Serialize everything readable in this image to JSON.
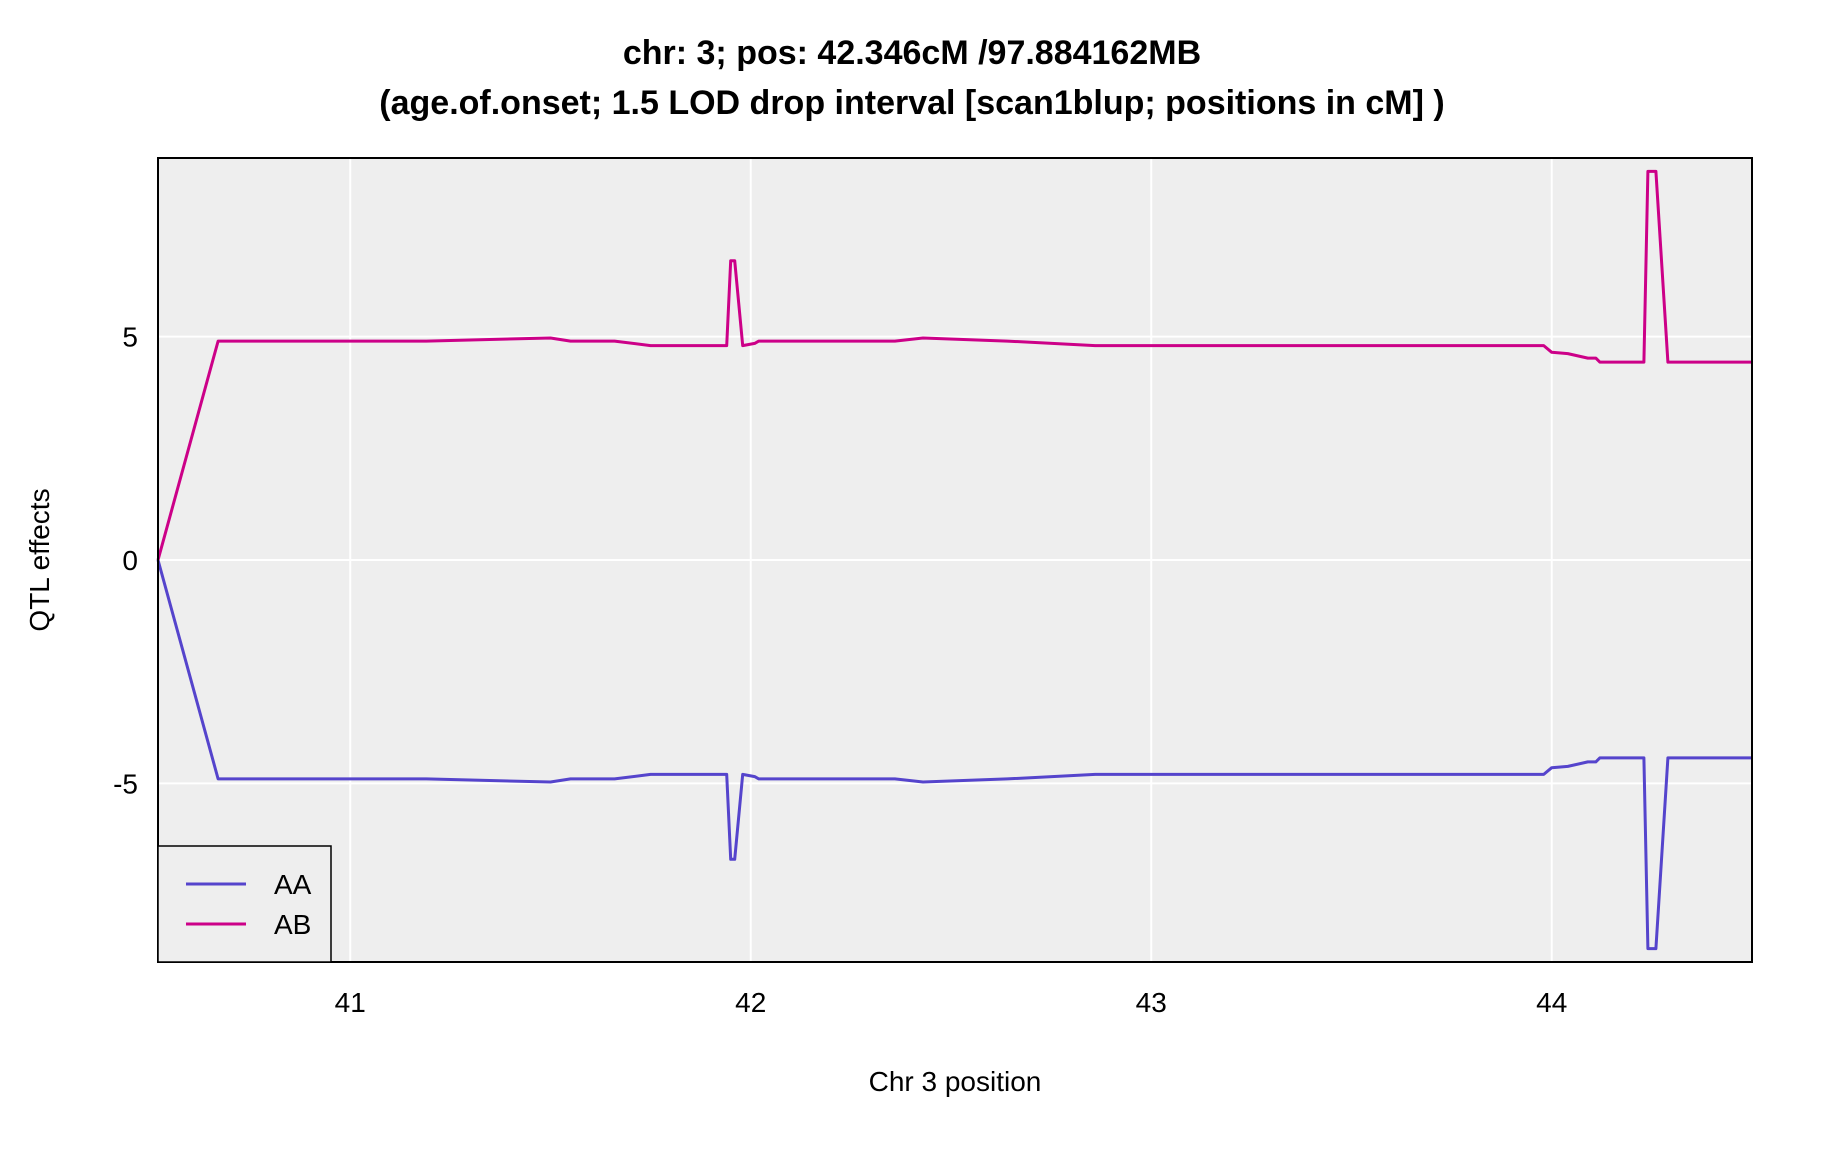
{
  "chart_data": {
    "type": "line",
    "title": "chr: 3; pos: 42.346cM /97.884162MB",
    "subtitle": "(age.of.onset; 1.5 LOD drop interval [scan1blup; positions in cM] )",
    "xlabel": "Chr 3 position",
    "ylabel": "QTL effects",
    "xlim": [
      40.52,
      44.5
    ],
    "ylim": [
      -9.0,
      9.0
    ],
    "x_ticks": [
      41,
      42,
      43,
      44
    ],
    "x_tick_labels": [
      "41",
      "42",
      "43",
      "44"
    ],
    "y_ticks": [
      -5,
      0,
      5
    ],
    "y_tick_labels": [
      "-5",
      "0",
      "5"
    ],
    "grid": true,
    "legend_position": "bottom-left",
    "x": [
      40.52,
      40.67,
      41.19,
      41.5,
      41.55,
      41.66,
      41.75,
      41.94,
      41.95,
      41.96,
      41.98,
      42.01,
      42.02,
      42.36,
      42.43,
      42.64,
      42.86,
      43.0,
      43.7,
      43.85,
      43.98,
      44.0,
      44.04,
      44.09,
      44.11,
      44.12,
      44.23,
      44.24,
      44.26,
      44.29,
      44.5
    ],
    "series": [
      {
        "name": "AA",
        "color": "#5544cc",
        "values": [
          0.0,
          -4.9,
          -4.9,
          -4.97,
          -4.9,
          -4.9,
          -4.8,
          -4.8,
          -6.7,
          -6.7,
          -4.8,
          -4.85,
          -4.9,
          -4.9,
          -4.97,
          -4.9,
          -4.8,
          -4.8,
          -4.8,
          -4.8,
          -4.8,
          -4.65,
          -4.62,
          -4.52,
          -4.52,
          -4.43,
          -4.43,
          -8.7,
          -8.7,
          -4.43,
          -4.43
        ]
      },
      {
        "name": "AB",
        "color": "#cc0088",
        "values": [
          0.0,
          4.9,
          4.9,
          4.97,
          4.9,
          4.9,
          4.8,
          4.8,
          6.7,
          6.7,
          4.8,
          4.85,
          4.9,
          4.9,
          4.97,
          4.9,
          4.8,
          4.8,
          4.8,
          4.8,
          4.8,
          4.65,
          4.62,
          4.52,
          4.52,
          4.43,
          4.43,
          8.7,
          8.7,
          4.43,
          4.43
        ]
      }
    ],
    "colors": {
      "panel": "#eeeeee",
      "grid": "#ffffff",
      "frame": "#000000"
    }
  }
}
